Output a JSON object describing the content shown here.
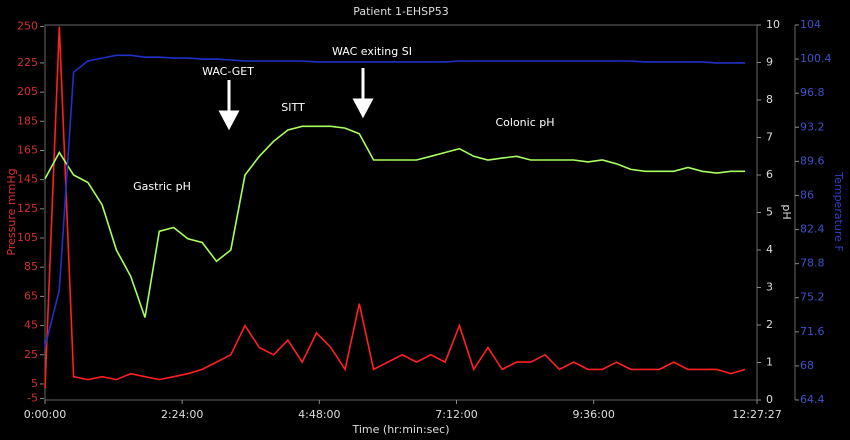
{
  "chart_data": {
    "type": "line",
    "title": "Patient 1-EHSP53",
    "x_label": "Time (hr:min:sec)",
    "y_label": "Pressure mmHg",
    "y2_label": "pH",
    "y3_label": "Temperature F",
    "x": [
      0,
      15,
      30,
      45,
      60,
      75,
      90,
      105,
      120,
      135,
      150,
      165,
      180,
      195,
      210,
      225,
      240,
      255,
      270,
      285,
      300,
      315,
      330,
      345,
      360,
      375,
      390,
      405,
      420,
      435,
      450,
      465,
      480,
      495,
      510,
      525,
      540,
      555,
      570,
      585,
      600,
      615,
      630,
      645,
      660,
      675,
      690,
      705,
      720,
      735
    ],
    "xlim": [
      0,
      747.45
    ],
    "xticks": [
      {
        "value": 0,
        "label": "0:00:00"
      },
      {
        "value": 144,
        "label": "2:24:00"
      },
      {
        "value": 288,
        "label": "4:48:00"
      },
      {
        "value": 432,
        "label": "7:12:00"
      },
      {
        "value": 576,
        "label": "9:36:00"
      },
      {
        "value": 747.45,
        "label": "12:27:27"
      }
    ],
    "ylim": [
      -6,
      251
    ],
    "yticks": [
      -5,
      5,
      25,
      45,
      65,
      85,
      105,
      125,
      145,
      165,
      185,
      205,
      225,
      250
    ],
    "y2lim": [
      0,
      10
    ],
    "y2ticks": [
      0,
      1,
      2,
      3,
      4,
      5,
      6,
      7,
      8,
      9,
      10
    ],
    "y3lim": [
      64.4,
      104
    ],
    "y3ticks": [
      64.4,
      68,
      71.6,
      75.2,
      78.8,
      82.4,
      86,
      89.6,
      93.2,
      96.8,
      100.4,
      104
    ],
    "series": [
      {
        "name": "Pressure",
        "color": "#ff2020",
        "axis": "y",
        "values": [
          2,
          250,
          10,
          8,
          10,
          8,
          12,
          10,
          8,
          10,
          12,
          15,
          20,
          25,
          45,
          30,
          25,
          35,
          20,
          40,
          30,
          15,
          60,
          15,
          20,
          25,
          20,
          25,
          20,
          45,
          15,
          30,
          15,
          20,
          20,
          25,
          15,
          20,
          15,
          15,
          20,
          15,
          15,
          15,
          20,
          15,
          15,
          15,
          12,
          15
        ]
      },
      {
        "name": "pH",
        "color": "#a8ff60",
        "axis": "y2",
        "values": [
          5.9,
          6.6,
          6.0,
          5.8,
          5.2,
          4.0,
          3.3,
          2.2,
          4.5,
          4.6,
          4.3,
          4.2,
          3.7,
          4.0,
          6.0,
          6.5,
          6.9,
          7.2,
          7.3,
          7.3,
          7.3,
          7.25,
          7.1,
          6.4,
          6.4,
          6.4,
          6.4,
          6.5,
          6.6,
          6.7,
          6.5,
          6.4,
          6.45,
          6.5,
          6.4,
          6.4,
          6.4,
          6.4,
          6.35,
          6.4,
          6.3,
          6.15,
          6.1,
          6.1,
          6.1,
          6.2,
          6.1,
          6.05,
          6.1,
          6.1
        ]
      },
      {
        "name": "Temperature",
        "color": "#2030c8",
        "axis": "y3",
        "values": [
          70,
          76,
          99,
          100.2,
          100.5,
          100.8,
          100.8,
          100.6,
          100.6,
          100.5,
          100.5,
          100.4,
          100.4,
          100.3,
          100.2,
          100.2,
          100.2,
          100.2,
          100.2,
          100.1,
          100.1,
          100.1,
          100.1,
          100.1,
          100.1,
          100.1,
          100.1,
          100.1,
          100.1,
          100.2,
          100.2,
          100.2,
          100.2,
          100.2,
          100.2,
          100.2,
          100.2,
          100.2,
          100.2,
          100.2,
          100.2,
          100.2,
          100.1,
          100.1,
          100.1,
          100.1,
          100.1,
          100.0,
          100.0,
          100.0
        ]
      }
    ],
    "annotations": [
      "Gastric pH",
      "WAC-GET",
      "SITT",
      "WAC exiting SI",
      "Colonic pH"
    ]
  }
}
